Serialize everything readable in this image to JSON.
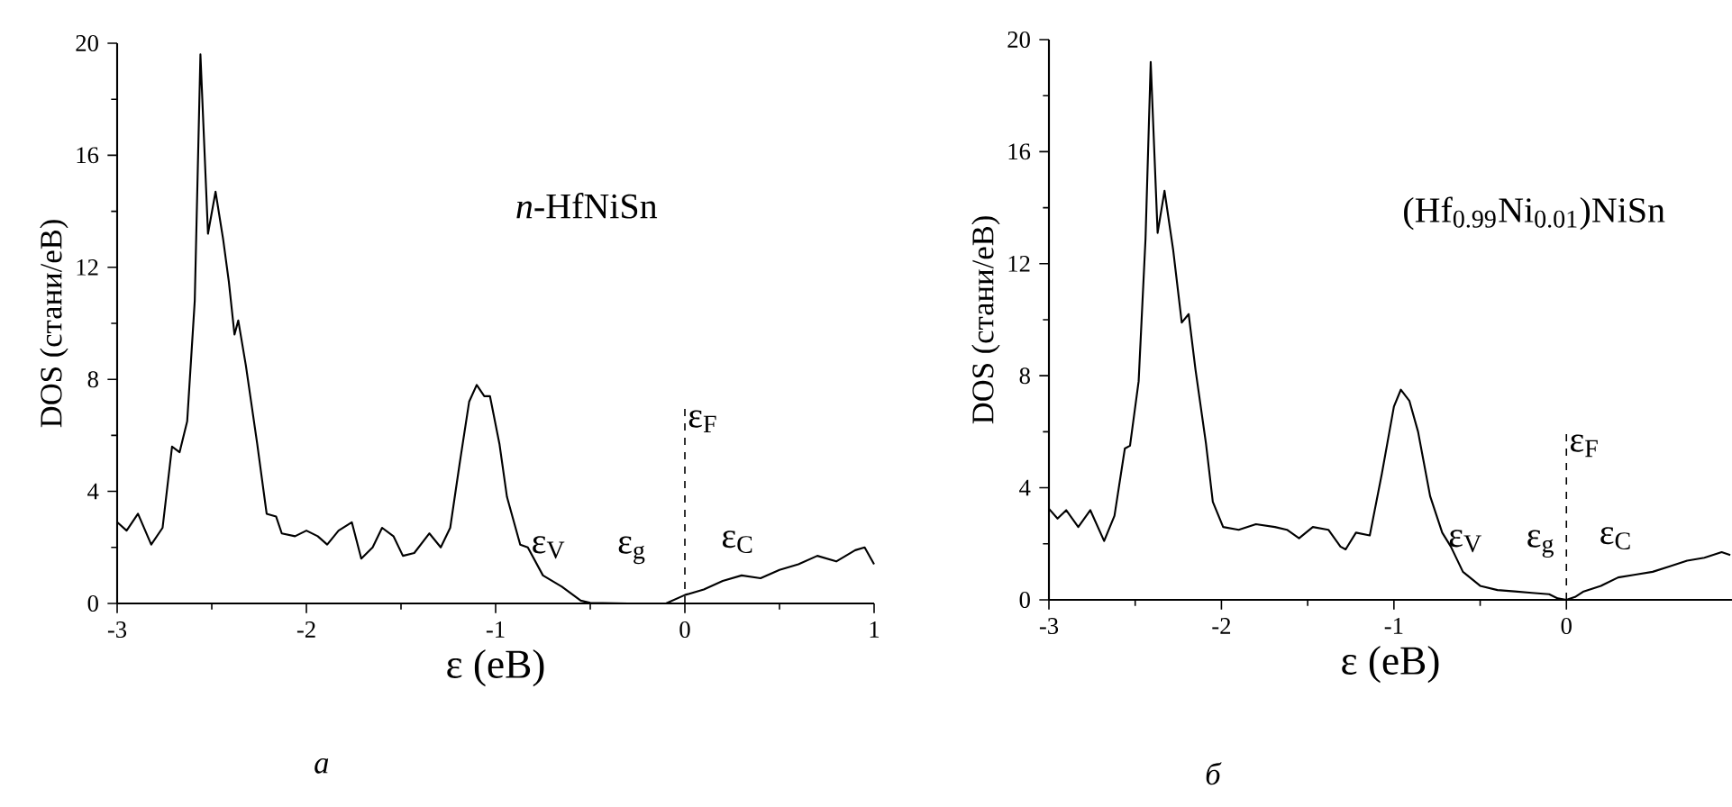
{
  "chart_data": [
    {
      "type": "line",
      "title": "*n*-HfNiSn",
      "xlabel": "ε (еВ)",
      "ylabel": "DOS (стани/еВ)",
      "xlim": [
        -3,
        1
      ],
      "ylim": [
        0,
        20
      ],
      "xticks": [
        -3,
        -2,
        -1,
        0,
        1
      ],
      "yticks": [
        0,
        4,
        8,
        12,
        16,
        20
      ],
      "series": [
        {
          "color": "#000000",
          "x": [
            -3,
            -2.95,
            -2.89,
            -2.82,
            -2.76,
            -2.71,
            -2.67,
            -2.63,
            -2.59,
            -2.56,
            -2.52,
            -2.48,
            -2.44,
            -2.41,
            -2.38,
            -2.36,
            -2.32,
            -2.26,
            -2.21,
            -2.16,
            -2.13,
            -2.06,
            -2.0,
            -1.94,
            -1.89,
            -1.83,
            -1.76,
            -1.71,
            -1.65,
            -1.6,
            -1.54,
            -1.49,
            -1.43,
            -1.35,
            -1.29,
            -1.24,
            -1.19,
            -1.14,
            -1.1,
            -1.06,
            -1.03,
            -0.98,
            -0.94,
            -0.87,
            -0.83,
            -0.75,
            -0.65,
            -0.55,
            -0.5,
            -0.3,
            -0.1,
            0,
            0.1,
            0.2,
            0.3,
            0.4,
            0.5,
            0.6,
            0.7,
            0.8,
            0.9,
            0.95,
            1.0
          ],
          "values": [
            2.9,
            2.6,
            3.2,
            2.1,
            2.7,
            5.6,
            5.4,
            6.5,
            10.8,
            19.6,
            13.2,
            14.7,
            13.0,
            11.5,
            9.6,
            10.1,
            8.5,
            5.7,
            3.2,
            3.1,
            2.5,
            2.4,
            2.6,
            2.4,
            2.1,
            2.6,
            2.9,
            1.6,
            2.0,
            2.7,
            2.4,
            1.7,
            1.8,
            2.5,
            2.0,
            2.7,
            5.0,
            7.2,
            7.8,
            7.4,
            7.4,
            5.7,
            3.8,
            2.1,
            2.0,
            1.0,
            0.6,
            0.1,
            0.02,
            0.0,
            0.0,
            0.3,
            0.5,
            0.8,
            1.0,
            0.9,
            1.2,
            1.4,
            1.7,
            1.5,
            1.9,
            2.0,
            1.4
          ]
        }
      ],
      "ref_lines": [
        {
          "axis": "x",
          "value": 0,
          "label": "ε$_{F}$",
          "line_style": "dashed"
        }
      ],
      "annotations": [
        "ε$_{V}$",
        "ε$_{g}$",
        "ε$_{C}$",
        "а"
      ]
    },
    {
      "type": "line",
      "title": "(Hf$_{0.99}$Ni$_{0.01}$)NiSn",
      "xlabel": "ε (еВ)",
      "ylabel": "DOS (стани/еВ)",
      "xlim": [
        -3,
        0.96
      ],
      "ylim": [
        0,
        20
      ],
      "xticks": [
        -3,
        -2,
        -1,
        0
      ],
      "yticks": [
        0,
        4,
        8,
        12,
        16,
        20
      ],
      "series": [
        {
          "color": "#000000",
          "x": [
            -3,
            -2.95,
            -2.9,
            -2.83,
            -2.76,
            -2.68,
            -2.62,
            -2.56,
            -2.53,
            -2.48,
            -2.44,
            -2.41,
            -2.37,
            -2.33,
            -2.28,
            -2.23,
            -2.19,
            -2.15,
            -2.09,
            -2.05,
            -1.99,
            -1.9,
            -1.8,
            -1.69,
            -1.62,
            -1.55,
            -1.47,
            -1.38,
            -1.31,
            -1.28,
            -1.22,
            -1.14,
            -1.07,
            -1.0,
            -0.96,
            -0.91,
            -0.86,
            -0.79,
            -0.72,
            -0.67,
            -0.6,
            -0.5,
            -0.4,
            -0.3,
            -0.2,
            -0.1,
            -0.05,
            0,
            0.05,
            0.1,
            0.2,
            0.3,
            0.4,
            0.5,
            0.6,
            0.7,
            0.8,
            0.9,
            0.95
          ],
          "values": [
            3.25,
            2.9,
            3.2,
            2.6,
            3.2,
            2.1,
            3.0,
            5.4,
            5.5,
            7.8,
            12.9,
            19.2,
            13.1,
            14.6,
            12.5,
            9.9,
            10.2,
            8.2,
            5.6,
            3.5,
            2.6,
            2.5,
            2.7,
            2.6,
            2.5,
            2.2,
            2.6,
            2.5,
            1.9,
            1.8,
            2.4,
            2.3,
            4.5,
            6.9,
            7.5,
            7.1,
            6.0,
            3.7,
            2.4,
            1.9,
            1.0,
            0.5,
            0.35,
            0.3,
            0.25,
            0.2,
            0.05,
            0.0,
            0.1,
            0.3,
            0.5,
            0.8,
            0.9,
            1.0,
            1.2,
            1.4,
            1.5,
            1.7,
            1.6
          ]
        }
      ],
      "ref_lines": [
        {
          "axis": "x",
          "value": 0,
          "label": "ε$_{F}$",
          "line_style": "dashed"
        }
      ],
      "annotations": [
        "ε$_{V}$",
        "ε$_{g}$",
        "ε$_{C}$",
        "б"
      ]
    }
  ]
}
